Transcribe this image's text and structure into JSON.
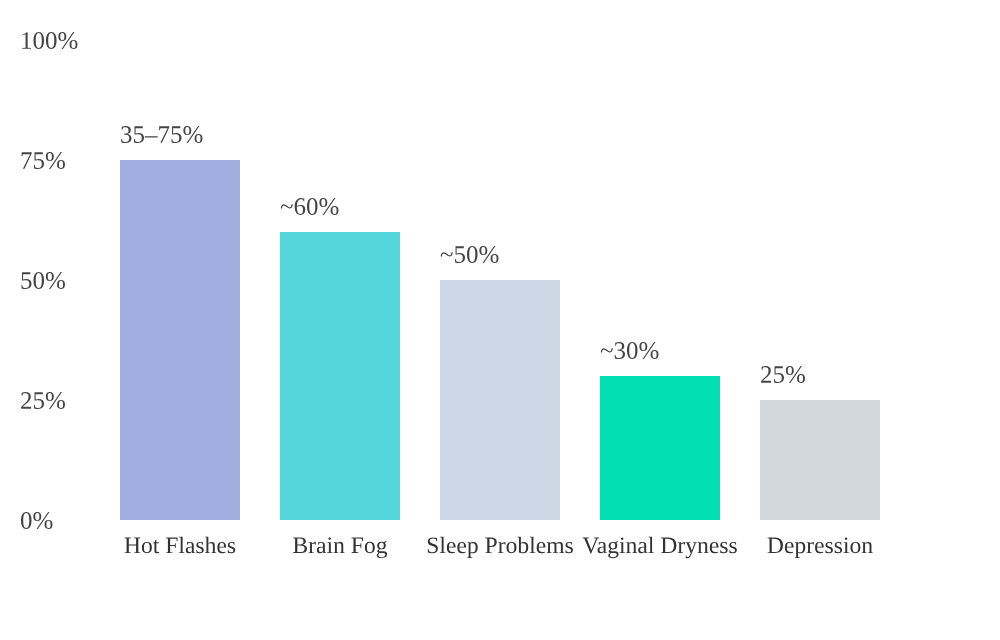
{
  "chart_data": {
    "type": "bar",
    "categories": [
      "Hot Flashes",
      "Brain Fog",
      "Sleep Problems",
      "Vaginal Dryness",
      "Depression"
    ],
    "values": [
      75,
      60,
      50,
      30,
      25
    ],
    "colors": [
      "#a3aee0",
      "#55d6dc",
      "#cbd7e4",
      "#00e0b0",
      "#d1d9dc"
    ],
    "value_labels": [
      null,
      "~60%",
      "~50%",
      "~30%",
      "25%"
    ],
    "annotations": [
      {
        "text": "35–75%",
        "x": "Hot Flashes",
        "y": 75
      }
    ],
    "ylim": [
      0,
      100
    ],
    "yticks": [
      {
        "value": 0,
        "label": "0%"
      },
      {
        "value": 25,
        "label": "25%"
      },
      {
        "value": 50,
        "label": "50%"
      },
      {
        "value": 75,
        "label": "75%"
      },
      {
        "value": 100,
        "label": "100%"
      }
    ],
    "grid": false
  }
}
